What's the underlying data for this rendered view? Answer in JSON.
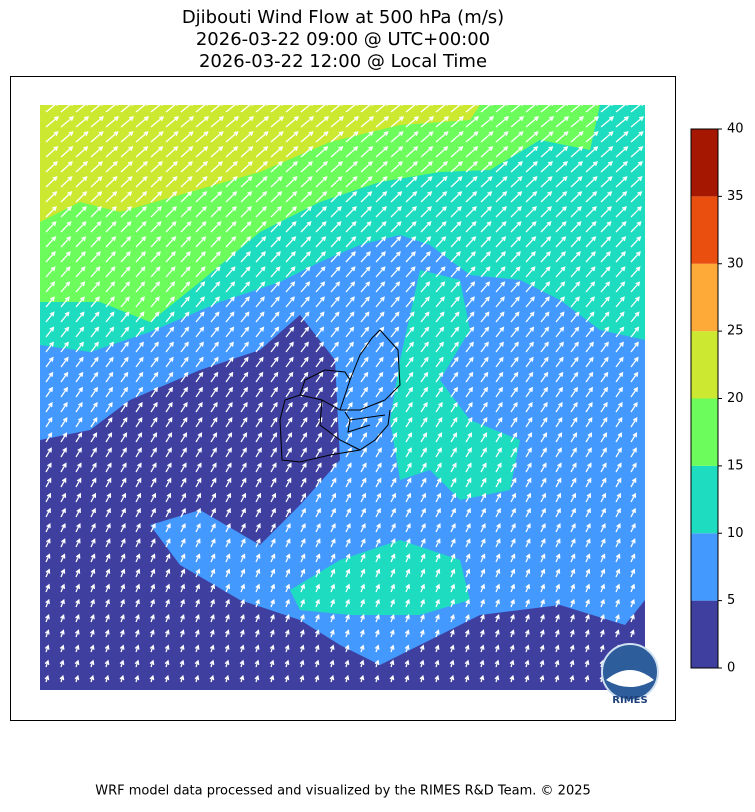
{
  "title": {
    "lines": [
      "Djibouti Wind Flow at 500 hPa (m/s)",
      "2026-03-22 09:00 @ UTC+00:00",
      "2026-03-22 12:00 @ Local Time"
    ]
  },
  "colorbar": {
    "lim": [
      0,
      40
    ],
    "ticks": [
      0,
      5,
      10,
      15,
      20,
      25,
      30,
      35,
      40
    ],
    "colors": [
      "#3f3fa0",
      "#4499ff",
      "#1edcc0",
      "#6cfc5c",
      "#cde830",
      "#fdaa38",
      "#ea4f10",
      "#a51700"
    ]
  },
  "logo": {
    "text": "RIMES"
  },
  "footer": {
    "text": "WRF model data processed and visualized by the RIMES R&D Team. © 2025"
  }
}
